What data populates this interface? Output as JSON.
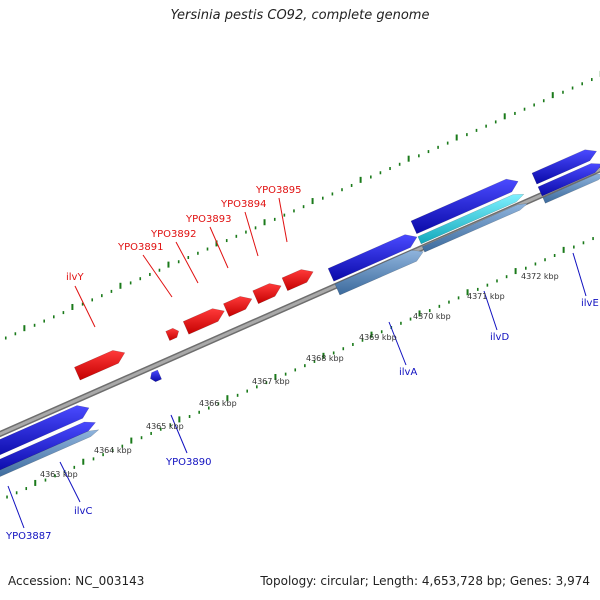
{
  "title": "Yersinia pestis CO92, complete genome",
  "footer": {
    "accession": "Accession: NC_003143",
    "summary": "Topology: circular; Length: 4,653,728 bp; Genes: 3,974"
  },
  "colors": {
    "backbone": "#8c8c8c",
    "forward_gene": "#ee1c1c",
    "reverse_gene": "#1515e0",
    "reverse_gene_dark": "#0d0d9a",
    "cds_steel": "#5b8fc4",
    "cds_cyan": "#22cfe0",
    "tick": "#1a7a1a",
    "label_forward": "#e01010",
    "label_reverse": "#1010c0"
  },
  "scale_labels": [
    "4363 kbp",
    "4364 kbp",
    "4365 kbp",
    "4366 kbp",
    "4367 kbp",
    "4368 kbp",
    "4369 kbp",
    "4370 kbp",
    "4371 kbp",
    "4372 kbp"
  ],
  "gene_labels_forward": [
    "ilvY",
    "YPO3891",
    "YPO3892",
    "YPO3893",
    "YPO3894",
    "YPO3895"
  ],
  "gene_labels_reverse": [
    "YPO3887",
    "ilvC",
    "YPO3890",
    "ilvA",
    "ilvD",
    "ilvE"
  ]
}
